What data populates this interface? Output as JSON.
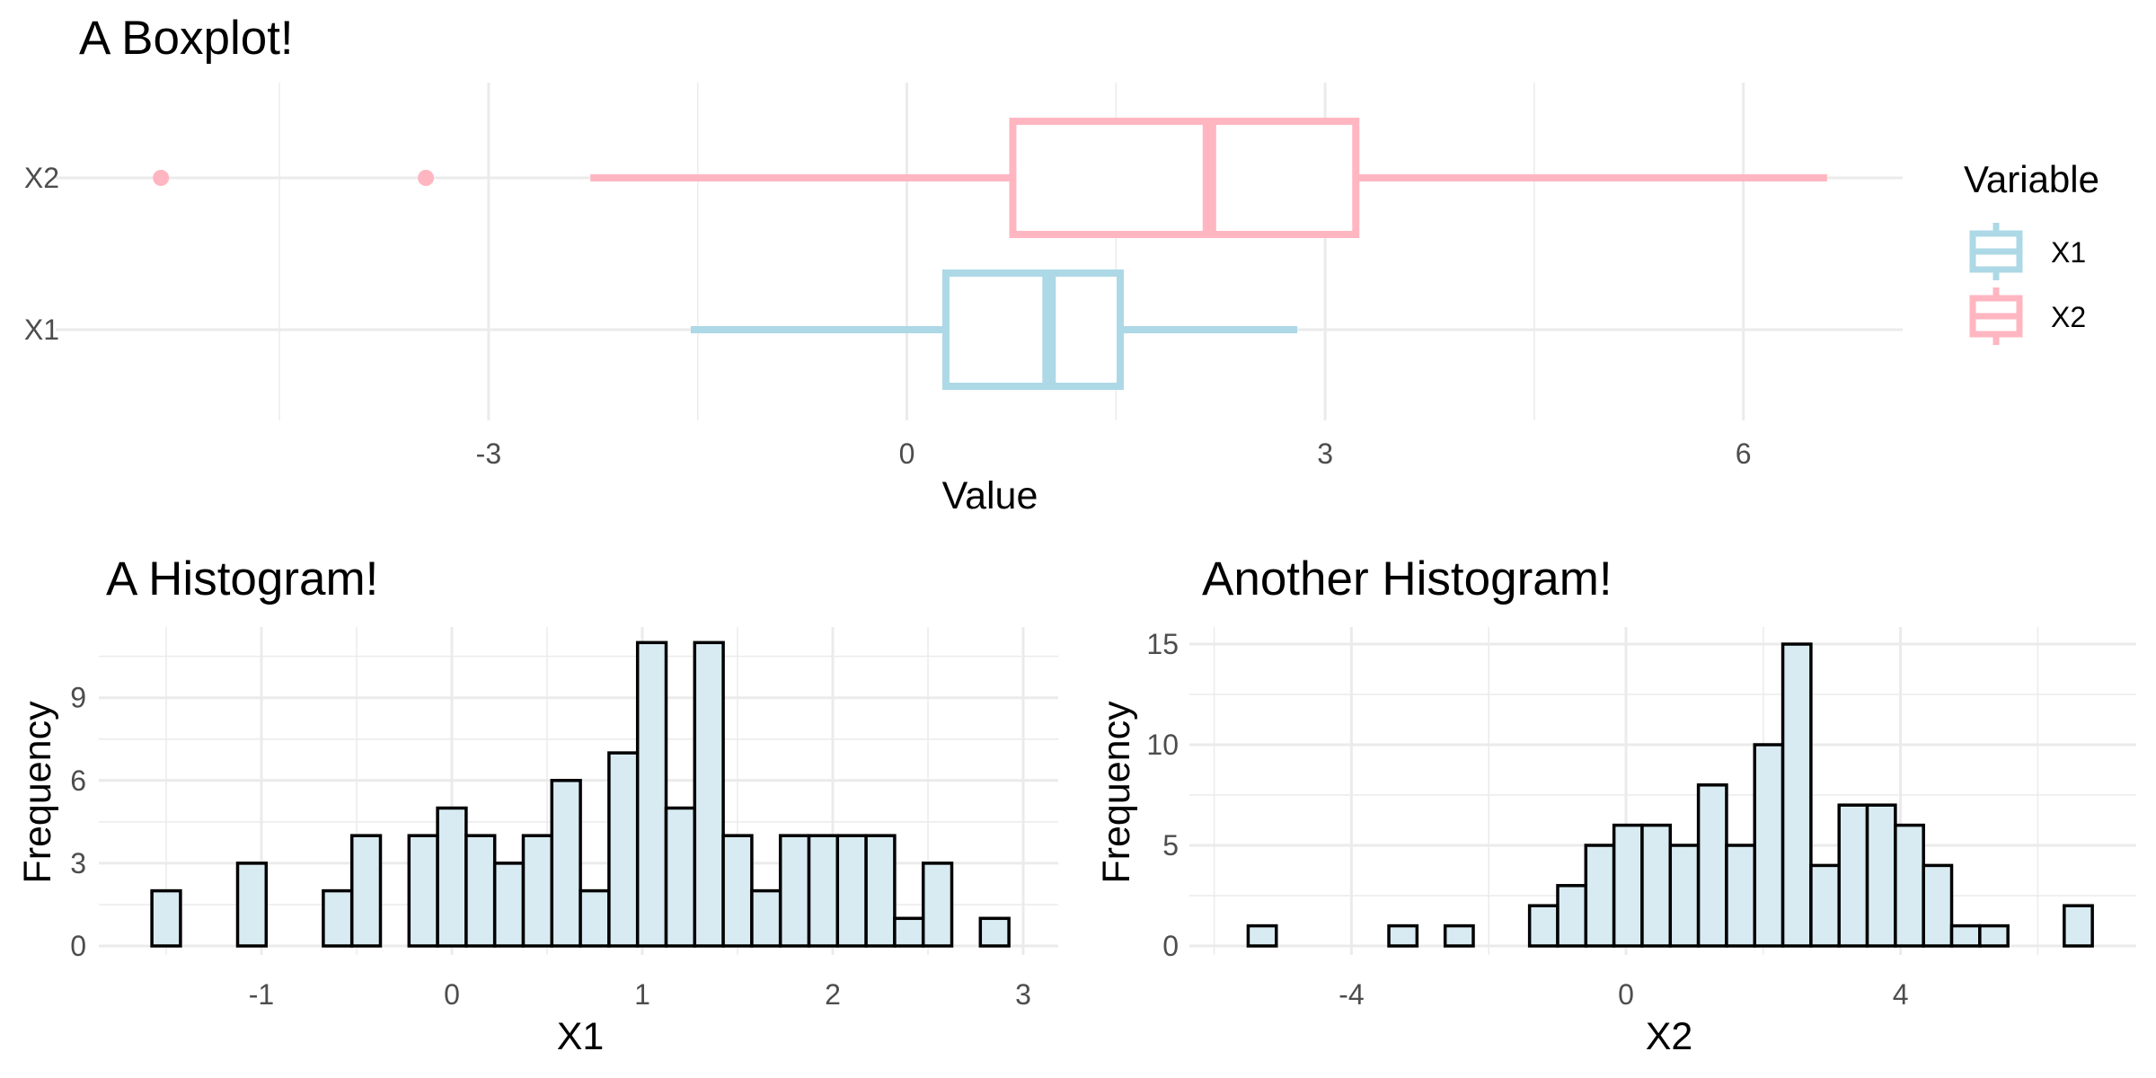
{
  "chart_data": [
    {
      "type": "boxplot",
      "title": "A Boxplot!",
      "xlabel": "Value",
      "ylabel": "",
      "orientation": "horizontal",
      "categories": [
        "X2",
        "X1"
      ],
      "xlim": [
        -6,
        7
      ],
      "xticks": [
        -3,
        0,
        3,
        6
      ],
      "grid": true,
      "legend": {
        "title": "Variable",
        "position": "right",
        "entries": [
          {
            "label": "X1",
            "color": "#add8e6"
          },
          {
            "label": "X2",
            "color": "#ffb6c1"
          }
        ]
      },
      "boxes": [
        {
          "name": "X2",
          "color": "#ffb6c1",
          "whisker_low": -2.27,
          "q1": 0.76,
          "median": 2.17,
          "q3": 3.22,
          "whisker_high": 6.6,
          "outliers": [
            -5.35,
            -3.45
          ]
        },
        {
          "name": "X1",
          "color": "#add8e6",
          "whisker_low": -1.55,
          "q1": 0.28,
          "median": 1.02,
          "q3": 1.53,
          "whisker_high": 2.8,
          "outliers": []
        }
      ]
    },
    {
      "type": "bar",
      "title": "A Histogram!",
      "xlabel": "X1",
      "ylabel": "Frequency",
      "fill": "#d8ebf2",
      "bin_width": 0.15,
      "bin_centers": [
        -1.5,
        -1.35,
        -1.2,
        -1.05,
        -0.9,
        -0.75,
        -0.6,
        -0.45,
        -0.3,
        -0.15,
        0,
        0.15,
        0.3,
        0.45,
        0.6,
        0.75,
        0.9,
        1.05,
        1.2,
        1.35,
        1.5,
        1.65,
        1.8,
        1.95,
        2.1,
        2.25,
        2.4,
        2.55,
        2.7,
        2.85
      ],
      "values": [
        2,
        0,
        0,
        3,
        0,
        0,
        2,
        4,
        0,
        4,
        5,
        4,
        3,
        4,
        6,
        2,
        7,
        11,
        5,
        11,
        4,
        2,
        4,
        4,
        4,
        4,
        1,
        3,
        0,
        1
      ],
      "xticks": [
        -1,
        0,
        1,
        2,
        3
      ],
      "yticks": [
        0,
        3,
        6,
        9
      ],
      "xlim": [
        -1.8,
        3.05
      ],
      "ylim": [
        0,
        11.55
      ],
      "grid": true
    },
    {
      "type": "bar",
      "title": "Another Histogram!",
      "xlabel": "X2",
      "ylabel": "Frequency",
      "fill": "#d8ebf2",
      "bin_width": 0.41,
      "bin_centers": [
        -5.3,
        -4.89,
        -4.48,
        -4.07,
        -3.66,
        -3.25,
        -2.84,
        -2.43,
        -2.02,
        -1.61,
        -1.2,
        -0.79,
        -0.38,
        0.03,
        0.44,
        0.85,
        1.26,
        1.67,
        2.08,
        2.49,
        2.9,
        3.31,
        3.72,
        4.13,
        4.54,
        4.95,
        5.36,
        5.77,
        6.18,
        6.59
      ],
      "values": [
        1,
        0,
        0,
        0,
        0,
        1,
        0,
        1,
        0,
        0,
        2,
        3,
        5,
        6,
        6,
        5,
        8,
        5,
        10,
        15,
        4,
        7,
        7,
        6,
        4,
        1,
        1,
        0,
        0,
        2
      ],
      "xticks": [
        -4,
        0,
        4
      ],
      "yticks": [
        0,
        5,
        10,
        15
      ],
      "xlim": [
        -6.0,
        7.3
      ],
      "ylim": [
        0,
        15.75
      ],
      "grid": true
    }
  ]
}
